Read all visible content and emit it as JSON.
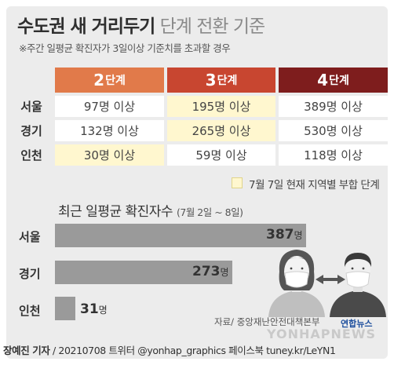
{
  "title": {
    "bold": "수도권 새 거리두기",
    "light": "단계 전환 기준"
  },
  "note": "※주간 일평균 확진자가 3일이상 기준치를 초과할 경우",
  "table": {
    "headers": [
      {
        "num": "2",
        "unit": "단계",
        "color": "#e17a4a"
      },
      {
        "num": "3",
        "unit": "단계",
        "color": "#c84630"
      },
      {
        "num": "4",
        "unit": "단계",
        "color": "#7e1d1d"
      }
    ],
    "rows": [
      {
        "label": "서울",
        "cells": [
          "97명 이상",
          "195명 이상",
          "389명 이상"
        ],
        "highlight": [
          false,
          true,
          false
        ]
      },
      {
        "label": "경기",
        "cells": [
          "132명 이상",
          "265명 이상",
          "530명 이상"
        ],
        "highlight": [
          false,
          true,
          false
        ]
      },
      {
        "label": "인천",
        "cells": [
          "30명 이상",
          "59명 이상",
          "118명 이상"
        ],
        "highlight": [
          true,
          false,
          false
        ]
      }
    ],
    "highlight_color": "#fff7cf"
  },
  "legend": "7월 7일 현재 지역별 부합 단계",
  "bar_subtitle": {
    "main": "최근 일평균 확진자수",
    "period": "(7월 2일 ~ 8일)"
  },
  "chart_data": {
    "type": "bar",
    "orientation": "horizontal",
    "categories": [
      "서울",
      "경기",
      "인천"
    ],
    "values": [
      387,
      273,
      31
    ],
    "value_suffix": "명",
    "bar_color": "#9a9a9a"
  },
  "source": "자료/ 중앙재난안전대책본부",
  "watermark": "YONHAPNEWS",
  "logo": "연합뉴스",
  "footer": {
    "author": "장예진 기자",
    "rest": " / 20210708 트위터 @yonhap_graphics  페이스북 tuney.kr/LeYN1"
  }
}
